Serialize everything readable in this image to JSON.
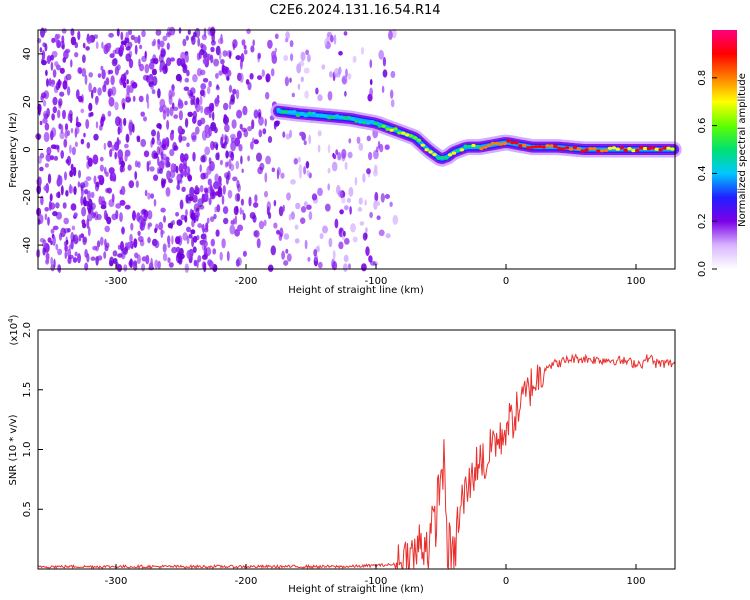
{
  "title": "C2E6.2024.131.16.54.R14",
  "chart_data": [
    {
      "type": "heatmap",
      "xlabel": "Height of straight line (km)",
      "ylabel": "Frequency (Hz)",
      "xlim": [
        -360,
        130
      ],
      "ylim": [
        -50,
        50
      ],
      "x_ticks": [
        -300,
        -200,
        -100,
        0,
        100
      ],
      "y_ticks": [
        40,
        20,
        0,
        -20,
        -40
      ],
      "ridge": {
        "x": [
          -175,
          -160,
          -140,
          -120,
          -100,
          -90,
          -80,
          -70,
          -60,
          -50,
          -45,
          -40,
          -30,
          -20,
          -10,
          0,
          10,
          20,
          40,
          60,
          80,
          100,
          130
        ],
        "y": [
          16,
          15,
          14,
          13,
          11,
          9,
          7,
          5,
          0,
          -4,
          -3,
          -1,
          1,
          1,
          2,
          3,
          2,
          1,
          1,
          0,
          0,
          0,
          0
        ]
      },
      "colorbar": {
        "label": "Normalized spectral amplitude",
        "range": [
          0,
          1
        ],
        "ticks": [
          "0.0",
          "0.2",
          "0.4",
          "0.6",
          "0.8"
        ],
        "colors": [
          "#ffffff",
          "#d8b4ff",
          "#7b00e8",
          "#2020ff",
          "#00c8ff",
          "#00e070",
          "#60ff00",
          "#ffff00",
          "#ff8000",
          "#ff0000",
          "#ff0080"
        ]
      }
    },
    {
      "type": "line",
      "xlabel": "Height of straight line (km)",
      "ylabel": "SNR (10 * v/v)",
      "multiplier": "(x10",
      "multiplier_exp": "4",
      "multiplier_close": ")",
      "xlim": [
        -360,
        130
      ],
      "ylim": [
        0,
        2.0
      ],
      "x_ticks": [
        -300,
        -200,
        -100,
        0,
        100
      ],
      "y_ticks": [
        "0.5",
        "1.0",
        "1.5",
        "2.0"
      ],
      "color": "#e8312e",
      "x": [
        -360,
        -300,
        -200,
        -120,
        -100,
        -80,
        -70,
        -65,
        -60,
        -55,
        -50,
        -48,
        -45,
        -42,
        -40,
        -38,
        -35,
        -30,
        -25,
        -20,
        -15,
        -10,
        -5,
        0,
        5,
        10,
        15,
        20,
        25,
        30,
        40,
        50,
        60,
        70,
        80,
        90,
        100,
        105,
        110,
        115,
        120,
        130
      ],
      "y": [
        0.02,
        0.02,
        0.02,
        0.02,
        0.03,
        0.04,
        0.1,
        0.25,
        0.2,
        0.35,
        0.8,
        0.9,
        0.2,
        0.1,
        0.02,
        0.3,
        0.5,
        0.65,
        0.8,
        0.95,
        0.85,
        1.1,
        1.05,
        1.2,
        1.25,
        1.35,
        1.45,
        1.55,
        1.6,
        1.7,
        1.72,
        1.76,
        1.76,
        1.75,
        1.75,
        1.74,
        1.72,
        1.72,
        1.78,
        1.72,
        1.72,
        1.72
      ]
    }
  ]
}
